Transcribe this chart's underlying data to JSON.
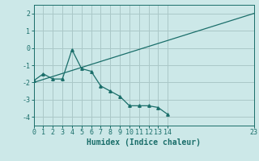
{
  "xlabel": "Humidex (Indice chaleur)",
  "bg_color": "#cce8e8",
  "grid_color": "#aac8c8",
  "line_color": "#1a6e6a",
  "line1_x": [
    0,
    23
  ],
  "line1_y": [
    -2.0,
    2.0
  ],
  "line2_x": [
    0,
    1,
    2,
    3,
    4,
    5,
    6,
    7,
    8,
    9,
    10,
    11,
    12,
    13,
    14
  ],
  "line2_y": [
    -1.9,
    -1.5,
    -1.8,
    -1.8,
    -0.1,
    -1.2,
    -1.35,
    -2.2,
    -2.5,
    -2.8,
    -3.35,
    -3.35,
    -3.35,
    -3.45,
    -3.85
  ],
  "xlim": [
    0,
    23
  ],
  "ylim": [
    -4.5,
    2.5
  ],
  "xticks": [
    0,
    1,
    2,
    3,
    4,
    5,
    6,
    7,
    8,
    9,
    10,
    11,
    12,
    13,
    14,
    23
  ],
  "yticks": [
    -4,
    -3,
    -2,
    -1,
    0,
    1,
    2
  ],
  "tick_fontsize": 6,
  "xlabel_fontsize": 7
}
